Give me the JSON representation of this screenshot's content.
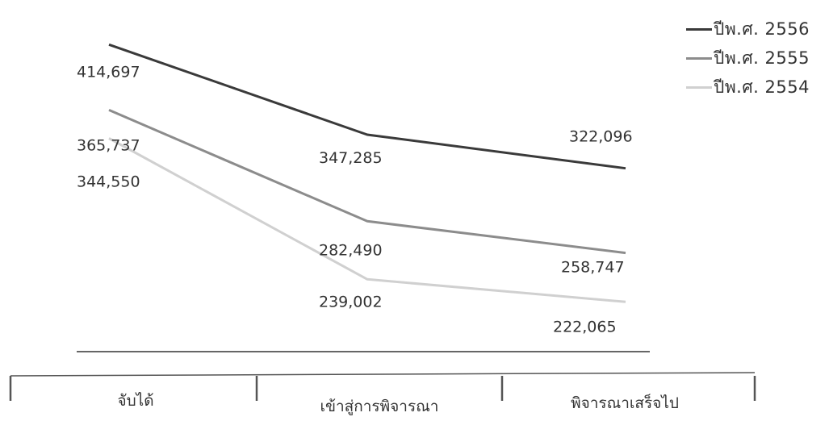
{
  "chart_data": {
    "type": "line",
    "categories": [
      "จับได้",
      "เข้าสู่การพิจารณา",
      "พิจารณาเสร็จไป"
    ],
    "series": [
      {
        "name": "ปีพ.ศ. 2556",
        "values": [
          414697,
          347285,
          322096
        ],
        "color": "#3a3a3a"
      },
      {
        "name": "ปีพ.ศ. 2555",
        "values": [
          365737,
          282490,
          258747
        ],
        "color": "#8c8c8c"
      },
      {
        "name": "ปีพ.ศ. 2554",
        "values": [
          344550,
          239002,
          222065
        ],
        "color": "#d0d0d0"
      }
    ],
    "data_labels": [
      [
        "414,697",
        "347,285",
        "322,096"
      ],
      [
        "365,737",
        "282,490",
        "258,747"
      ],
      [
        "344,550",
        "239,002",
        "222,065"
      ]
    ],
    "ylim": [
      180000,
      430000
    ],
    "legend_position": "top-right",
    "grid": false
  }
}
